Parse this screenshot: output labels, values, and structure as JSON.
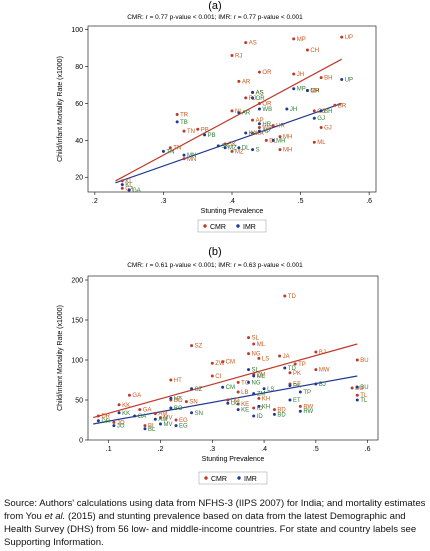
{
  "caption": {
    "part1": "Source: Authors' calculations using data from NFHS-3 (IIPS 2007) for India; and mortality estimates from You ",
    "em": "et al.",
    "part2": " (2015) and stunting prevalence based on data from the latest Demographic and Health Survey (DHS) from 56 low- and middle-income countries. For state and country labels see Supporting Information."
  },
  "legend_labels": {
    "cmr": "CMR",
    "imr": "IMR"
  },
  "chart_data": [
    {
      "panel_label": "(a)",
      "type": "scatter",
      "stat_line": "CMR: r = 0.77 p-value < 0.001; IMR: r = 0.77 p-value < 0.001",
      "xlabel": "Stunting Prevalence",
      "ylabel": "Child/infant Mortality Rate (x1000)",
      "xlim": [
        0.19,
        0.61
      ],
      "ylim": [
        12,
        102
      ],
      "xticks": [
        ".2",
        ".3",
        ".4",
        ".5",
        ".6"
      ],
      "xtick_values": [
        0.2,
        0.3,
        0.4,
        0.5,
        0.6
      ],
      "yticks": [
        "20",
        "40",
        "60",
        "80",
        "100"
      ],
      "ytick_values": [
        20,
        40,
        60,
        80,
        100
      ],
      "colors": {
        "cmr": "#c0392b",
        "imr": "#1f3a93",
        "label_cmr": "#c85a1e",
        "label_imr": "#2e7d32"
      },
      "fit_lines": {
        "cmr": {
          "x": [
            0.23,
            0.56
          ],
          "y": [
            18,
            84
          ]
        },
        "imr": {
          "x": [
            0.23,
            0.56
          ],
          "y": [
            17,
            60
          ]
        }
      },
      "series": [
        {
          "name": "CMR",
          "points": [
            {
              "label": "UP",
              "x": 0.56,
              "y": 96
            },
            {
              "label": "MP",
              "x": 0.49,
              "y": 95
            },
            {
              "label": "AS",
              "x": 0.42,
              "y": 93
            },
            {
              "label": "CH",
              "x": 0.51,
              "y": 89
            },
            {
              "label": "RJ",
              "x": 0.4,
              "y": 86
            },
            {
              "label": "OR",
              "x": 0.44,
              "y": 77
            },
            {
              "label": "JH",
              "x": 0.49,
              "y": 76
            },
            {
              "label": "BH",
              "x": 0.53,
              "y": 74
            },
            {
              "label": "AR",
              "x": 0.41,
              "y": 72
            },
            {
              "label": "AS",
              "x": 0.43,
              "y": 66
            },
            {
              "label": "MP",
              "x": 0.51,
              "y": 67
            },
            {
              "label": "RJ",
              "x": 0.42,
              "y": 63
            },
            {
              "label": "OR",
              "x": 0.44,
              "y": 60
            },
            {
              "label": "BR",
              "x": 0.55,
              "y": 59
            },
            {
              "label": "GJ",
              "x": 0.52,
              "y": 56
            },
            {
              "label": "NL",
              "x": 0.4,
              "y": 56
            },
            {
              "label": "AP",
              "x": 0.43,
              "y": 51
            },
            {
              "label": "TR",
              "x": 0.32,
              "y": 54
            },
            {
              "label": "PB",
              "x": 0.35,
              "y": 46
            },
            {
              "label": "WB",
              "x": 0.44,
              "y": 47
            },
            {
              "label": "HR",
              "x": 0.46,
              "y": 48
            },
            {
              "label": "GJ",
              "x": 0.53,
              "y": 47
            },
            {
              "label": "TN",
              "x": 0.33,
              "y": 45
            },
            {
              "label": "KA",
              "x": 0.43,
              "y": 44
            },
            {
              "label": "DL",
              "x": 0.45,
              "y": 40
            },
            {
              "label": "MH",
              "x": 0.47,
              "y": 42
            },
            {
              "label": "ML",
              "x": 0.52,
              "y": 39
            },
            {
              "label": "TN",
              "x": 0.31,
              "y": 36
            },
            {
              "label": "MN",
              "x": 0.33,
              "y": 30
            },
            {
              "label": "SK",
              "x": 0.39,
              "y": 38
            },
            {
              "label": "MZ",
              "x": 0.4,
              "y": 34
            },
            {
              "label": "MH",
              "x": 0.47,
              "y": 35
            },
            {
              "label": "KL",
              "x": 0.24,
              "y": 18
            },
            {
              "label": "GA",
              "x": 0.24,
              "y": 14
            }
          ]
        },
        {
          "name": "IMR",
          "points": [
            {
              "label": "UP",
              "x": 0.56,
              "y": 73
            },
            {
              "label": "MP",
              "x": 0.49,
              "y": 68
            },
            {
              "label": "CH",
              "x": 0.51,
              "y": 67
            },
            {
              "label": "OR",
              "x": 0.43,
              "y": 63
            },
            {
              "label": "AS",
              "x": 0.43,
              "y": 66
            },
            {
              "label": "JH",
              "x": 0.48,
              "y": 57
            },
            {
              "label": "WB",
              "x": 0.44,
              "y": 57
            },
            {
              "label": "BH",
              "x": 0.53,
              "y": 56
            },
            {
              "label": "GJ",
              "x": 0.52,
              "y": 52
            },
            {
              "label": "AR",
              "x": 0.41,
              "y": 55
            },
            {
              "label": "TB",
              "x": 0.32,
              "y": 50
            },
            {
              "label": "HR",
              "x": 0.44,
              "y": 49
            },
            {
              "label": "AP",
              "x": 0.44,
              "y": 45
            },
            {
              "label": "PB",
              "x": 0.36,
              "y": 43
            },
            {
              "label": "KA",
              "x": 0.42,
              "y": 44
            },
            {
              "label": "SK",
              "x": 0.38,
              "y": 37
            },
            {
              "label": "MH",
              "x": 0.46,
              "y": 40
            },
            {
              "label": "DL",
              "x": 0.41,
              "y": 36
            },
            {
              "label": "TN",
              "x": 0.3,
              "y": 34
            },
            {
              "label": "MN",
              "x": 0.33,
              "y": 32
            },
            {
              "label": "S",
              "x": 0.43,
              "y": 35
            },
            {
              "label": "MZ",
              "x": 0.39,
              "y": 36
            },
            {
              "label": "KL",
              "x": 0.24,
              "y": 16
            },
            {
              "label": "GA",
              "x": 0.25,
              "y": 13
            }
          ]
        }
      ]
    },
    {
      "panel_label": "(b)",
      "type": "scatter",
      "stat_line": "CMR: r = 0.61 p-value < 0.001; IMR: r = 0.63 p-value < 0.001",
      "xlabel": "Stunting Prevalence",
      "ylabel": "Child/infant Mortality Rate (x1000)",
      "xlim": [
        0.06,
        0.62
      ],
      "ylim": [
        0,
        205
      ],
      "xticks": [
        ".1",
        ".2",
        ".3",
        ".4",
        ".5",
        ".6"
      ],
      "xtick_values": [
        0.1,
        0.2,
        0.3,
        0.4,
        0.5,
        0.6
      ],
      "yticks": [
        "0",
        "50",
        "100",
        "150",
        "200"
      ],
      "ytick_values": [
        0,
        50,
        100,
        150,
        200
      ],
      "colors": {
        "cmr": "#c0392b",
        "imr": "#1f3a93",
        "label_cmr": "#c85a1e",
        "label_imr": "#2e7d32"
      },
      "fit_lines": {
        "cmr": {
          "x": [
            0.07,
            0.58
          ],
          "y": [
            28,
            120
          ]
        },
        "imr": {
          "x": [
            0.07,
            0.58
          ],
          "y": [
            20,
            80
          ]
        }
      },
      "series": [
        {
          "name": "CMR",
          "points": [
            {
              "label": "TD",
              "x": 0.44,
              "y": 180
            },
            {
              "label": "SL",
              "x": 0.37,
              "y": 128
            },
            {
              "label": "ML",
              "x": 0.38,
              "y": 120
            },
            {
              "label": "SZ",
              "x": 0.26,
              "y": 118
            },
            {
              "label": "BJ",
              "x": 0.5,
              "y": 110
            },
            {
              "label": "NG",
              "x": 0.37,
              "y": 108
            },
            {
              "label": "JA",
              "x": 0.43,
              "y": 105
            },
            {
              "label": "LS",
              "x": 0.39,
              "y": 102
            },
            {
              "label": "BU",
              "x": 0.58,
              "y": 100
            },
            {
              "label": "CM",
              "x": 0.32,
              "y": 98
            },
            {
              "label": "ZW",
              "x": 0.3,
              "y": 96
            },
            {
              "label": "TP",
              "x": 0.46,
              "y": 95
            },
            {
              "label": "MW",
              "x": 0.5,
              "y": 88
            },
            {
              "label": "PK",
              "x": 0.45,
              "y": 84
            },
            {
              "label": "ZM",
              "x": 0.38,
              "y": 82
            },
            {
              "label": "HT",
              "x": 0.22,
              "y": 75
            },
            {
              "label": "CI",
              "x": 0.3,
              "y": 80
            },
            {
              "label": "TG",
              "x": 0.35,
              "y": 72
            },
            {
              "label": "GA",
              "x": 0.14,
              "y": 56
            },
            {
              "label": "LB",
              "x": 0.35,
              "y": 60
            },
            {
              "label": "BO",
              "x": 0.22,
              "y": 50
            },
            {
              "label": "ET",
              "x": 0.45,
              "y": 70
            },
            {
              "label": "KH",
              "x": 0.39,
              "y": 52
            },
            {
              "label": "SN",
              "x": 0.25,
              "y": 48
            },
            {
              "label": "UG",
              "x": 0.33,
              "y": 50
            },
            {
              "label": "KK",
              "x": 0.12,
              "y": 44
            },
            {
              "label": "GA",
              "x": 0.16,
              "y": 38
            },
            {
              "label": "ID",
              "x": 0.38,
              "y": 40
            },
            {
              "label": "BD",
              "x": 0.42,
              "y": 38
            },
            {
              "label": "RW",
              "x": 0.47,
              "y": 42
            },
            {
              "label": "MV",
              "x": 0.2,
              "y": 28
            },
            {
              "label": "EG",
              "x": 0.23,
              "y": 25
            },
            {
              "label": "JO",
              "x": 0.11,
              "y": 22
            },
            {
              "label": "DR",
              "x": 0.08,
              "y": 30
            },
            {
              "label": "BL",
              "x": 0.17,
              "y": 18
            },
            {
              "label": "TL",
              "x": 0.58,
              "y": 56
            },
            {
              "label": "BU",
              "x": 0.57,
              "y": 65
            },
            {
              "label": "KE",
              "x": 0.35,
              "y": 45
            },
            {
              "label": "AM",
              "x": 0.19,
              "y": 33
            }
          ]
        },
        {
          "name": "IMR",
          "points": [
            {
              "label": "ML",
              "x": 0.38,
              "y": 80
            },
            {
              "label": "SL",
              "x": 0.37,
              "y": 88
            },
            {
              "label": "TD",
              "x": 0.44,
              "y": 90
            },
            {
              "label": "NG",
              "x": 0.37,
              "y": 72
            },
            {
              "label": "BJ",
              "x": 0.5,
              "y": 70
            },
            {
              "label": "CM",
              "x": 0.32,
              "y": 66
            },
            {
              "label": "SZ",
              "x": 0.26,
              "y": 64
            },
            {
              "label": "PK",
              "x": 0.45,
              "y": 68
            },
            {
              "label": "ZM",
              "x": 0.38,
              "y": 58
            },
            {
              "label": "LS",
              "x": 0.4,
              "y": 64
            },
            {
              "label": "TP",
              "x": 0.47,
              "y": 60
            },
            {
              "label": "ET",
              "x": 0.45,
              "y": 50
            },
            {
              "label": "UG",
              "x": 0.33,
              "y": 46
            },
            {
              "label": "KH",
              "x": 0.39,
              "y": 42
            },
            {
              "label": "HT",
              "x": 0.22,
              "y": 52
            },
            {
              "label": "BO",
              "x": 0.22,
              "y": 40
            },
            {
              "label": "SN",
              "x": 0.26,
              "y": 34
            },
            {
              "label": "ID",
              "x": 0.38,
              "y": 30
            },
            {
              "label": "BD",
              "x": 0.42,
              "y": 32
            },
            {
              "label": "RW",
              "x": 0.47,
              "y": 36
            },
            {
              "label": "KK",
              "x": 0.12,
              "y": 34
            },
            {
              "label": "GA",
              "x": 0.15,
              "y": 30
            },
            {
              "label": "DR",
              "x": 0.08,
              "y": 24
            },
            {
              "label": "JO",
              "x": 0.11,
              "y": 18
            },
            {
              "label": "MV",
              "x": 0.2,
              "y": 20
            },
            {
              "label": "EG",
              "x": 0.23,
              "y": 18
            },
            {
              "label": "BL",
              "x": 0.17,
              "y": 14
            },
            {
              "label": "BU",
              "x": 0.58,
              "y": 66
            },
            {
              "label": "TL",
              "x": 0.58,
              "y": 50
            },
            {
              "label": "AM",
              "x": 0.19,
              "y": 26
            },
            {
              "label": "KE",
              "x": 0.35,
              "y": 38
            }
          ]
        }
      ]
    }
  ]
}
